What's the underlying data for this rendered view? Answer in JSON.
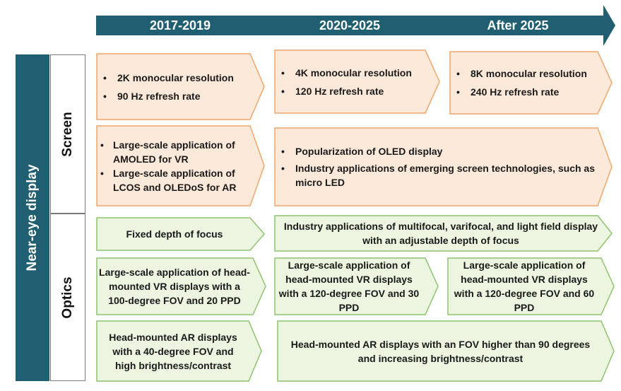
{
  "colors": {
    "timeline": "#1f5f71",
    "screen_fill": "#fde9d9",
    "screen_border": "#f2a66a",
    "optics_fill": "#ebf5df",
    "optics_border": "#8fc46f"
  },
  "timeline": {
    "periods": [
      "2017-2019",
      "2020-2025",
      "After 2025"
    ]
  },
  "labels": {
    "main": "Near-eye display",
    "screen": "Screen",
    "optics": "Optics"
  },
  "screen": {
    "row1": {
      "p1": [
        "2K monocular resolution",
        "90 Hz refresh rate"
      ],
      "p2": [
        "4K monocular resolution",
        "120 Hz refresh rate"
      ],
      "p3": [
        "8K monocular resolution",
        "240 Hz refresh rate"
      ]
    },
    "row2": {
      "p1": [
        "Large-scale application of AMOLED for VR",
        "Large-scale application of LCOS and OLEDoS for AR"
      ],
      "p23": [
        "Popularization of OLED display",
        "Industry applications of emerging screen technologies, such as micro LED"
      ]
    }
  },
  "optics": {
    "row1": {
      "p1": "Fixed depth of focus",
      "p23": "Industry applications of multifocal, varifocal, and light field display with an adjustable depth of focus"
    },
    "row2": {
      "p1": "Large-scale application of head-mounted VR displays with a 100-degree FOV and 20 PPD",
      "p2": "Large-scale application of head-mounted VR displays with a 120-degree FOV and 30 PPD",
      "p3": "Large-scale application of head-mounted VR displays with a 120-degree FOV and 60 PPD"
    },
    "row3": {
      "p1": "Head-mounted AR displays with a 40-degree FOV and high brightness/contrast",
      "p23": "Head-mounted AR displays with an FOV higher than 90 degrees and increasing brightness/contrast"
    }
  }
}
